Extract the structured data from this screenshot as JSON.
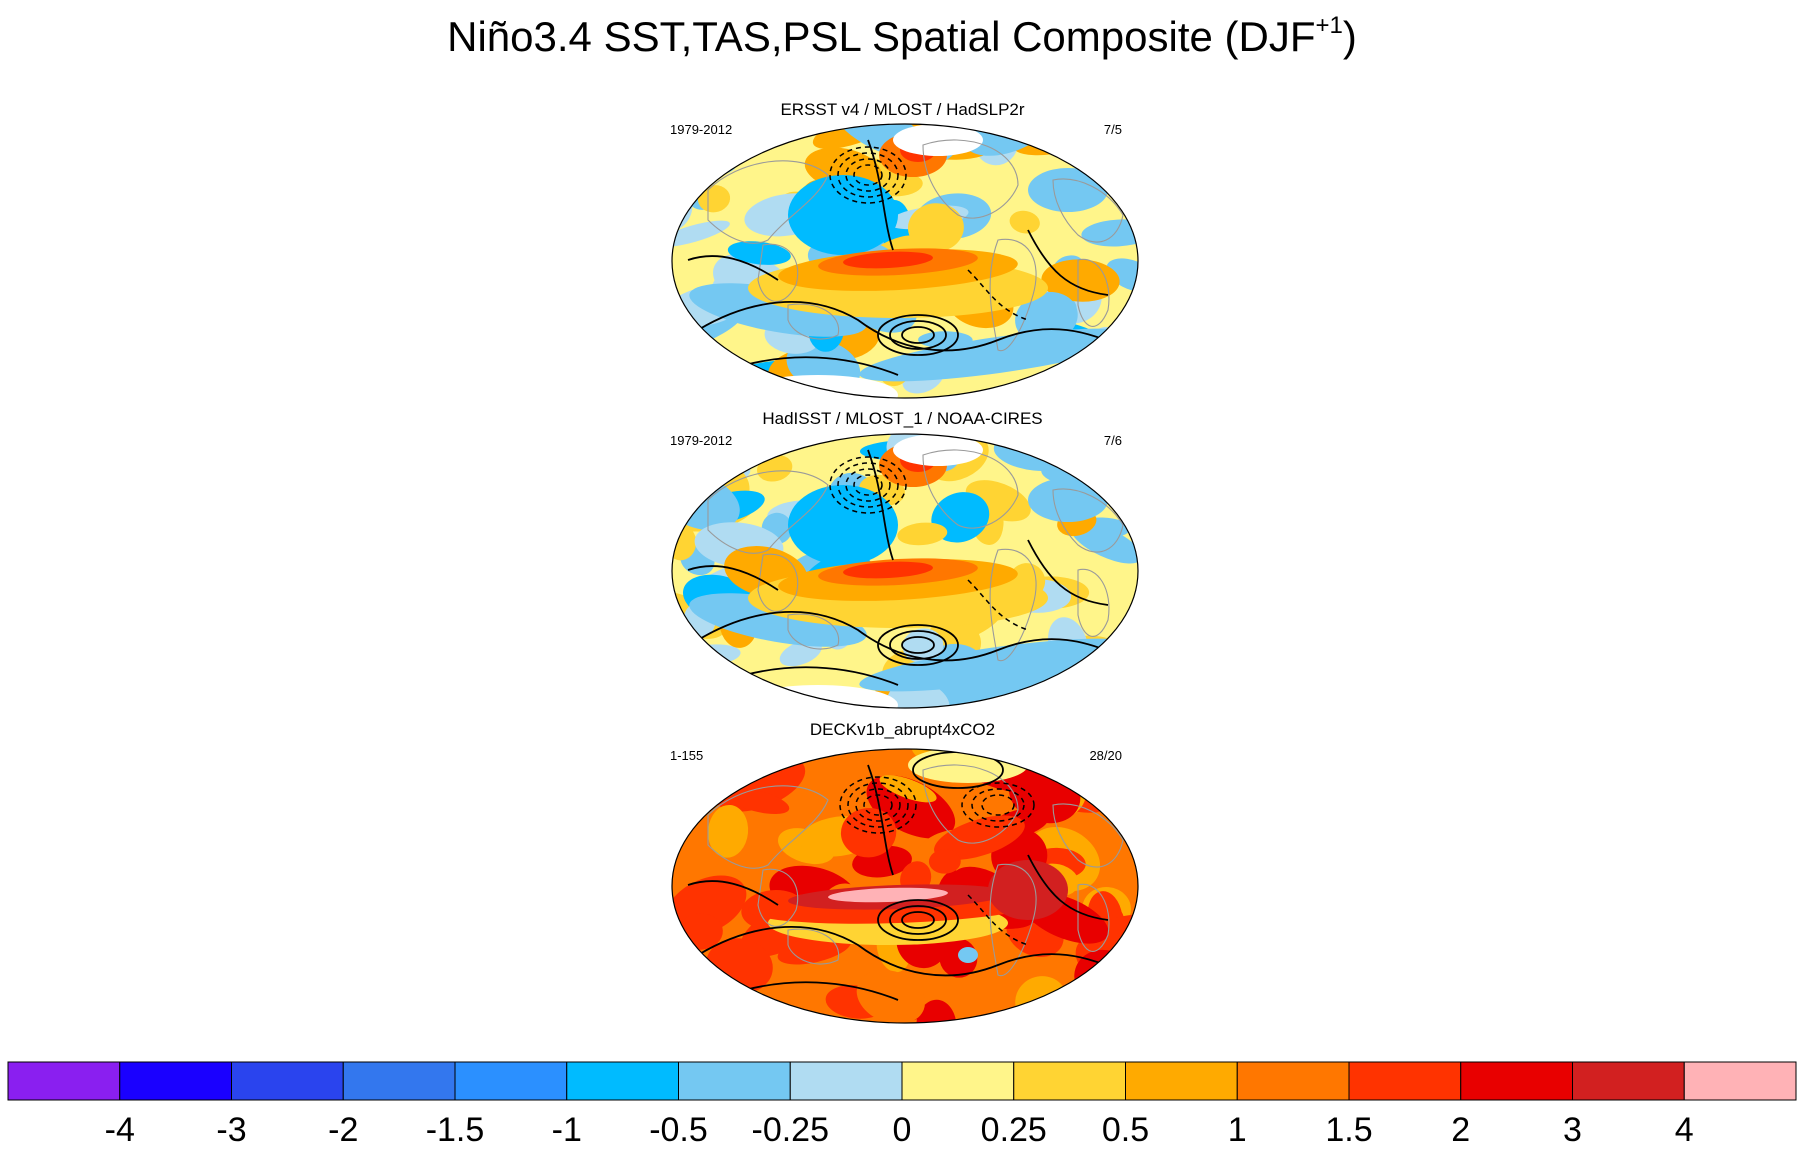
{
  "chart_data": {
    "type": "heatmap",
    "title_main": "Niño3.4 SST,TAS,PSL Spatial Composite (DJF",
    "title_superscript": "+1",
    "title_close": ")",
    "panels": [
      {
        "title": "ERSST v4 / MLOST / HadSLP2r",
        "years": "1979-2012",
        "count": "7/5",
        "style": "obs1"
      },
      {
        "title": "HadISST / MLOST_1 / NOAA-CIRES",
        "years": "1979-2012",
        "count": "7/6",
        "style": "obs2"
      },
      {
        "title": "DECKv1b_abrupt4xCO2",
        "years": "1-155",
        "count": "28/20",
        "style": "model"
      }
    ],
    "colorbar": {
      "levels": [
        "-4",
        "-3",
        "-2",
        "-1.5",
        "-1",
        "-0.5",
        "-0.25",
        "0",
        "0.25",
        "0.5",
        "1",
        "1.5",
        "2",
        "3",
        "4"
      ],
      "colors": [
        "#8a1ff0",
        "#1a00ff",
        "#2a44ee",
        "#3377ee",
        "#2b90ff",
        "#00bbff",
        "#74c8f2",
        "#b0dcf2",
        "#fff58a",
        "#ffd433",
        "#ffaa00",
        "#ff7700",
        "#ff3300",
        "#e80000",
        "#d22020",
        "#ffb2b6"
      ]
    }
  }
}
